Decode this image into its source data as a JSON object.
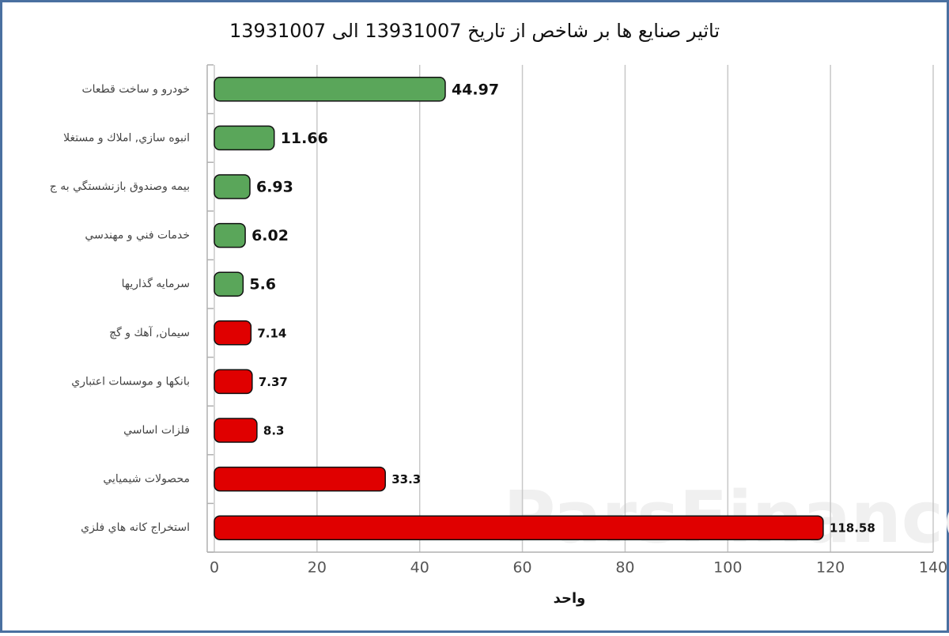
{
  "chart_data": {
    "type": "bar",
    "orientation": "horizontal",
    "title": "تاثیر صنایع ها بر شاخص از تاریخ 13931007 الی 13931007",
    "watermark": "ParsFinance.ir",
    "categories": [
      "خودرو و ساخت قطعات",
      "انبوه سازي, املاك و مستغلا",
      "بيمه وصندوق بازنشستگي به ج",
      "خدمات فني و مهندسي",
      "سرمايه گذاريها",
      "سيمان, آهك و گچ",
      "بانكها و موسسات اعتباري",
      "فلزات اساسي",
      "محصولات شيميايي",
      "استخراج كانه هاي فلزي"
    ],
    "values": [
      44.97,
      11.66,
      6.93,
      6.02,
      5.6,
      7.14,
      7.37,
      8.3,
      33.3,
      118.58
    ],
    "colors": [
      "#5aa65a",
      "#5aa65a",
      "#5aa65a",
      "#5aa65a",
      "#5aa65a",
      "#e00000",
      "#e00000",
      "#e00000",
      "#e00000",
      "#e00000"
    ],
    "xlabel": "واحد",
    "xlim": [
      0,
      140
    ],
    "xticks": [
      0,
      20,
      40,
      60,
      80,
      100,
      120,
      140
    ],
    "grid": true
  }
}
